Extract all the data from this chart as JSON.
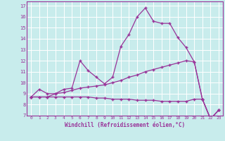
{
  "xlabel": "Windchill (Refroidissement éolien,°C)",
  "background_color": "#c8ecec",
  "line_color": "#993399",
  "grid_color": "#ffffff",
  "xlim": [
    -0.5,
    23.5
  ],
  "ylim": [
    7,
    17.4
  ],
  "yticks": [
    7,
    8,
    9,
    10,
    11,
    12,
    13,
    14,
    15,
    16,
    17
  ],
  "xticks": [
    0,
    1,
    2,
    3,
    4,
    5,
    6,
    7,
    8,
    9,
    10,
    11,
    12,
    13,
    14,
    15,
    16,
    17,
    18,
    19,
    20,
    21,
    22,
    23
  ],
  "lines": [
    {
      "x": [
        0,
        1,
        2,
        3,
        4,
        5,
        6,
        7,
        8,
        9,
        10,
        11,
        12,
        13,
        14,
        15,
        16,
        17,
        18,
        19,
        20,
        21,
        22,
        23
      ],
      "y": [
        8.7,
        9.4,
        9.0,
        9.0,
        9.4,
        9.5,
        12.0,
        11.1,
        10.5,
        9.9,
        10.5,
        13.3,
        14.4,
        16.0,
        16.8,
        15.6,
        15.4,
        15.4,
        14.1,
        13.2,
        11.9,
        8.5,
        6.7,
        7.5
      ]
    },
    {
      "x": [
        0,
        1,
        2,
        3,
        4,
        5,
        6,
        7,
        8,
        9,
        10,
        11,
        12,
        13,
        14,
        15,
        16,
        17,
        18,
        19,
        20,
        21,
        22,
        23
      ],
      "y": [
        8.7,
        8.7,
        8.7,
        9.0,
        9.1,
        9.3,
        9.5,
        9.6,
        9.7,
        9.8,
        10.0,
        10.2,
        10.5,
        10.7,
        11.0,
        11.2,
        11.4,
        11.6,
        11.8,
        12.0,
        11.9,
        8.5,
        6.7,
        7.5
      ]
    },
    {
      "x": [
        0,
        1,
        2,
        3,
        4,
        5,
        6,
        7,
        8,
        9,
        10,
        11,
        12,
        13,
        14,
        15,
        16,
        17,
        18,
        19,
        20,
        21,
        22,
        23
      ],
      "y": [
        8.7,
        8.7,
        8.7,
        8.7,
        8.7,
        8.7,
        8.7,
        8.7,
        8.6,
        8.6,
        8.5,
        8.5,
        8.5,
        8.4,
        8.4,
        8.4,
        8.3,
        8.3,
        8.3,
        8.3,
        8.5,
        8.5,
        6.7,
        7.5
      ]
    }
  ]
}
